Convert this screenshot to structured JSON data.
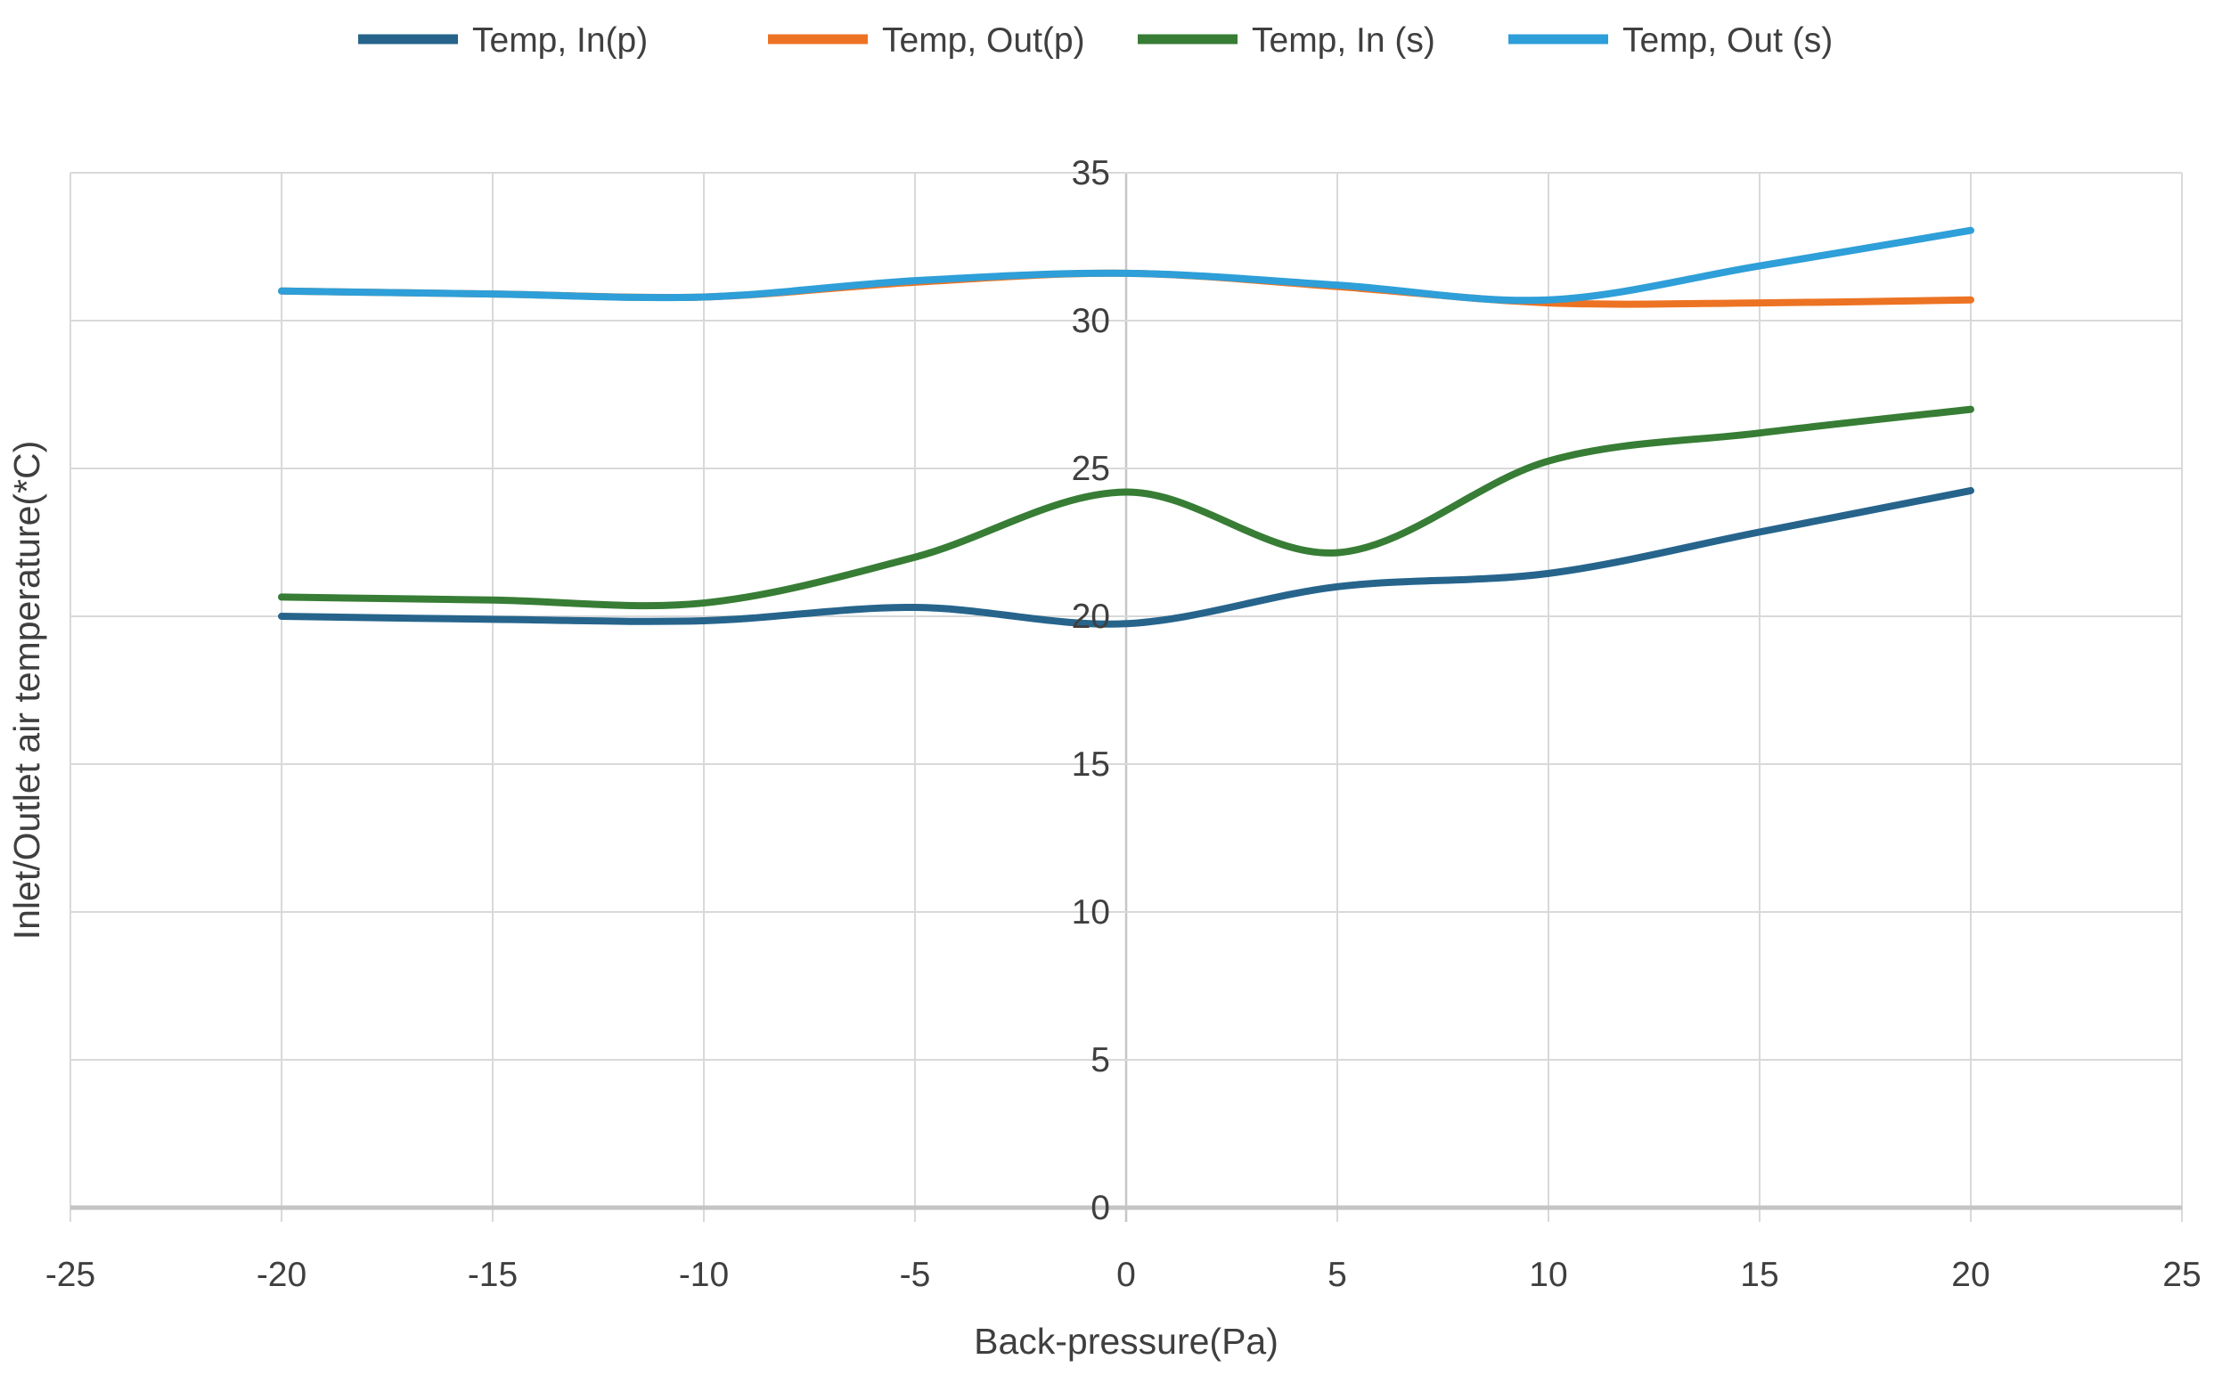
{
  "chart_data": {
    "type": "line",
    "title": "",
    "xlabel": "Back-pressure(Pa)",
    "ylabel": "Inlet/Outlet air temperature(*C)",
    "x": [
      -20,
      -15,
      -10,
      -5,
      0,
      5,
      10,
      15,
      20
    ],
    "xlim": [
      -25,
      25
    ],
    "ylim": [
      0,
      35
    ],
    "x_ticks": [
      -25,
      -20,
      -15,
      -10,
      -5,
      0,
      5,
      10,
      15,
      20,
      25
    ],
    "y_ticks": [
      0,
      5,
      10,
      15,
      20,
      25,
      30,
      35
    ],
    "grid": true,
    "smoothed_lines": true,
    "legend_position": "top",
    "y_labels_at_zero_axis": true,
    "series": [
      {
        "name": "Temp, In(p)",
        "color": "#26648C",
        "values": [
          20.0,
          19.9,
          19.85,
          20.3,
          19.75,
          21.0,
          21.45,
          22.85,
          24.25
        ]
      },
      {
        "name": "Temp, Out(p)",
        "color": "#EC7323",
        "values": [
          31.0,
          30.9,
          30.8,
          31.3,
          31.6,
          31.15,
          30.6,
          30.6,
          30.7
        ]
      },
      {
        "name": "Temp, In (s)",
        "color": "#377D35",
        "values": [
          20.65,
          20.55,
          20.45,
          22.0,
          24.2,
          22.15,
          25.25,
          26.2,
          27.0
        ]
      },
      {
        "name": "Temp, Out (s)",
        "color": "#2E9FD8",
        "values": [
          31.0,
          30.9,
          30.8,
          31.35,
          31.6,
          31.2,
          30.7,
          31.85,
          33.05
        ]
      }
    ],
    "colors": {
      "gridline": "#D9D9D9",
      "zero_vertical_gridline": "#C6C6C6",
      "x_axis_line": "#C4C4C4",
      "label_text": "#3F3F3F"
    }
  }
}
